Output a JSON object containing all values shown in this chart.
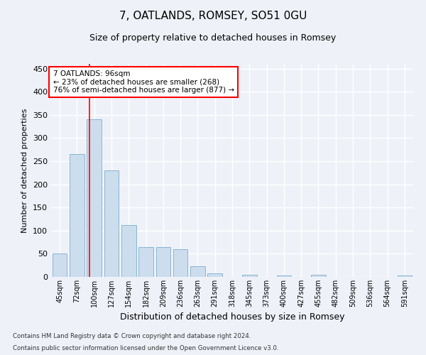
{
  "title": "7, OATLANDS, ROMSEY, SO51 0GU",
  "subtitle": "Size of property relative to detached houses in Romsey",
  "xlabel": "Distribution of detached houses by size in Romsey",
  "ylabel": "Number of detached properties",
  "bar_labels": [
    "45sqm",
    "72sqm",
    "100sqm",
    "127sqm",
    "154sqm",
    "182sqm",
    "209sqm",
    "236sqm",
    "263sqm",
    "291sqm",
    "318sqm",
    "345sqm",
    "373sqm",
    "400sqm",
    "427sqm",
    "455sqm",
    "482sqm",
    "509sqm",
    "536sqm",
    "564sqm",
    "591sqm"
  ],
  "bar_values": [
    50,
    265,
    340,
    230,
    112,
    65,
    65,
    60,
    23,
    7,
    0,
    5,
    0,
    3,
    0,
    4,
    0,
    0,
    0,
    0,
    3
  ],
  "bar_color": "#ccdded",
  "bar_edge_color": "#8ab4d4",
  "ylim": [
    0,
    460
  ],
  "yticks": [
    0,
    50,
    100,
    150,
    200,
    250,
    300,
    350,
    400,
    450
  ],
  "red_line_x": 1.72,
  "annotation_text": "7 OATLANDS: 96sqm\n← 23% of detached houses are smaller (268)\n76% of semi-detached houses are larger (877) →",
  "annotation_box_color": "white",
  "annotation_box_edge_color": "red",
  "footer_line1": "Contains HM Land Registry data © Crown copyright and database right 2024.",
  "footer_line2": "Contains public sector information licensed under the Open Government Licence v3.0.",
  "background_color": "#eef2f8",
  "grid_color": "white",
  "title_fontsize": 11,
  "subtitle_fontsize": 9,
  "ylabel_fontsize": 8,
  "xlabel_fontsize": 9
}
